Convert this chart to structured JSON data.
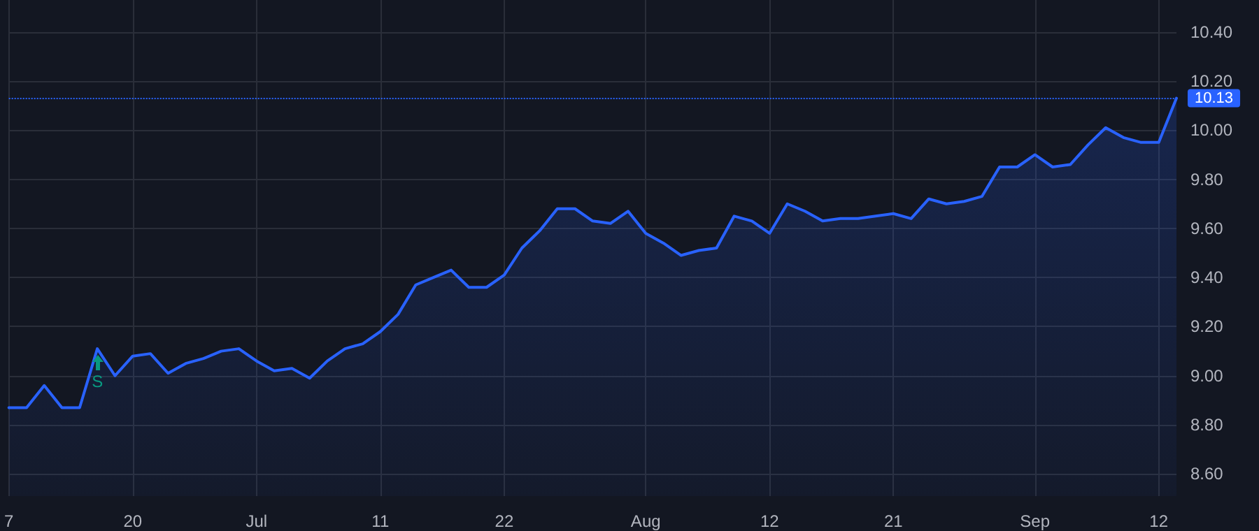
{
  "chart_data": {
    "type": "area",
    "categories": [
      "7",
      null,
      null,
      null,
      null,
      null,
      null,
      "20",
      null,
      null,
      null,
      null,
      null,
      null,
      "Jul",
      null,
      null,
      null,
      null,
      null,
      null,
      "11",
      null,
      null,
      null,
      null,
      null,
      null,
      "22",
      null,
      null,
      null,
      null,
      null,
      null,
      null,
      "Aug",
      null,
      null,
      null,
      null,
      null,
      null,
      "12",
      null,
      null,
      null,
      null,
      null,
      null,
      "21",
      null,
      null,
      null,
      null,
      null,
      null,
      null,
      "Sep",
      null,
      null,
      null,
      null,
      null,
      null,
      "12",
      null
    ],
    "series": [
      {
        "color": "#2962ff",
        "values": [
          8.87,
          8.87,
          8.96,
          8.87,
          8.87,
          9.11,
          9.0,
          9.08,
          9.09,
          9.01,
          9.05,
          9.07,
          9.1,
          9.11,
          9.06,
          9.02,
          9.03,
          8.99,
          9.06,
          9.11,
          9.13,
          9.18,
          9.25,
          9.37,
          9.4,
          9.43,
          9.36,
          9.36,
          9.41,
          9.52,
          9.59,
          9.68,
          9.68,
          9.63,
          9.62,
          9.67,
          9.58,
          9.54,
          9.49,
          9.51,
          9.52,
          9.65,
          9.63,
          9.58,
          9.7,
          9.67,
          9.63,
          9.64,
          9.64,
          9.65,
          9.66,
          9.64,
          9.72,
          9.7,
          9.71,
          9.73,
          9.85,
          9.85,
          9.9,
          9.85,
          9.86,
          9.94,
          10.01,
          9.97,
          9.95,
          9.95,
          10.13
        ]
      }
    ],
    "ylim": [
      8.51,
      10.53
    ],
    "yticks": [
      {
        "value": 8.6,
        "label": "8.60"
      },
      {
        "value": 8.8,
        "label": "8.80"
      },
      {
        "value": 9.0,
        "label": "9.00"
      },
      {
        "value": 9.2,
        "label": "9.20"
      },
      {
        "value": 9.4,
        "label": "9.40"
      },
      {
        "value": 9.6,
        "label": "9.60"
      },
      {
        "value": 9.8,
        "label": "9.80"
      },
      {
        "value": 10.0,
        "label": "10.00"
      },
      {
        "value": 10.2,
        "label": "10.20"
      },
      {
        "value": 10.4,
        "label": "10.40"
      }
    ],
    "ref_lines": [
      {
        "axis": "y",
        "value": 10.13,
        "label": "10.13",
        "color": "#2962ff",
        "line_style": "dotted"
      }
    ],
    "annotations": [
      {
        "text": "S",
        "y": 9.11
      }
    ],
    "grid": true,
    "marker": "none",
    "line_style": "solid"
  }
}
